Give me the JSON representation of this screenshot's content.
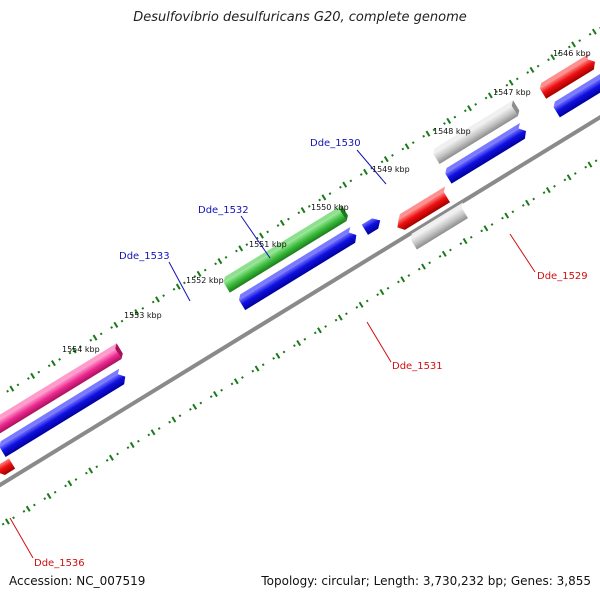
{
  "title": "Desulfovibrio desulfuricans G20, complete genome",
  "footer": {
    "accession": "Accession: NC_007519",
    "summary": "Topology: circular; Length: 3,730,232 bp; Genes: 3,855"
  },
  "ruler": {
    "ticks": [
      {
        "kbp": 1546,
        "label": "1546 kbp"
      },
      {
        "kbp": 1547,
        "label": "1547 kbp"
      },
      {
        "kbp": 1548,
        "label": "1548 kbp"
      },
      {
        "kbp": 1549,
        "label": "1549 kbp"
      },
      {
        "kbp": 1550,
        "label": "1550 kbp"
      },
      {
        "kbp": 1551,
        "label": "1551 kbp"
      },
      {
        "kbp": 1552,
        "label": "1552 kbp"
      },
      {
        "kbp": 1553,
        "label": "1553 kbp"
      },
      {
        "kbp": 1554,
        "label": "1554 kbp"
      }
    ]
  },
  "gene_labels": [
    {
      "name": "Dde_1530",
      "color": "#1414b4"
    },
    {
      "name": "Dde_1532",
      "color": "#1414b4"
    },
    {
      "name": "Dde_1533",
      "color": "#1414b4"
    },
    {
      "name": "Dde_1529",
      "color": "#d01010"
    },
    {
      "name": "Dde_1531",
      "color": "#d01010"
    },
    {
      "name": "Dde_1536",
      "color": "#d01010"
    }
  ],
  "colors": {
    "blue": "#1010d8",
    "red": "#e01010",
    "pink_red": "#f08080",
    "gray": "#bdbdbd",
    "green": "#3cb83c",
    "magenta": "#e8288a",
    "tick_green": "#1a7a1a",
    "backbone": "#888888"
  }
}
